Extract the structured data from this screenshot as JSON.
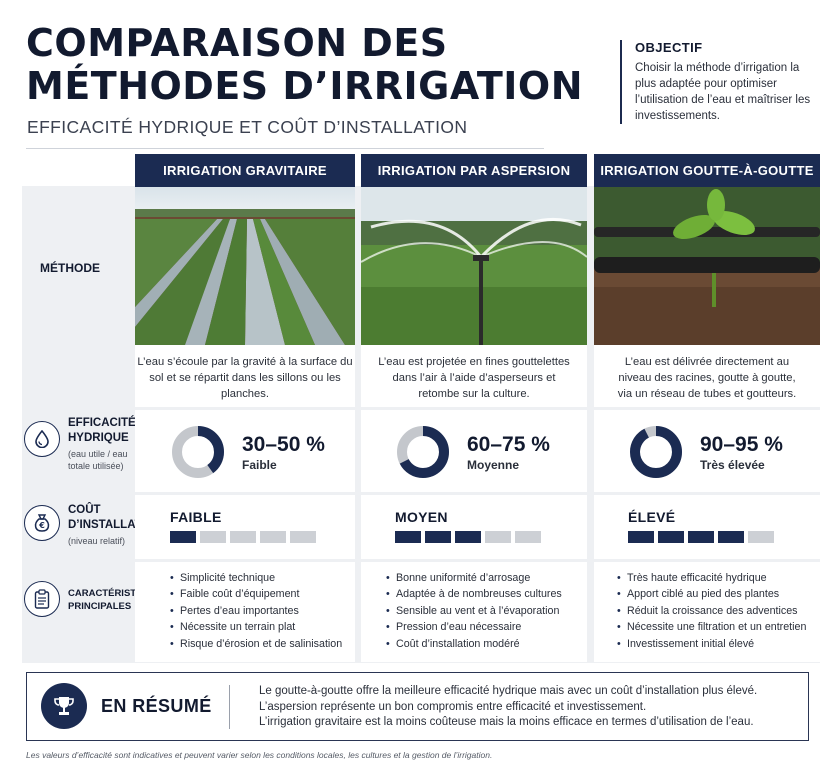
{
  "header": {
    "title_line1": "COMPARAISON DES",
    "title_line2": "MÉTHODES D’IRRIGATION",
    "subtitle": "EFFICACITÉ HYDRIQUE ET COÛT D’INSTALLATION"
  },
  "objective": {
    "title": "OBJECTIF",
    "text": "Choisir la méthode d’irrigation la plus adaptée pour optimiser l’utilisation de l’eau et maîtriser les investissements."
  },
  "row_labels": {
    "method": "MÉTHODE",
    "efficiency_title": "EFFICACITÉ HYDRIQUE",
    "efficiency_sub": "(eau utile / eau totale utilisée)",
    "cost_title": "COÛT D’INSTALLATION",
    "cost_sub": "(niveau relatif)",
    "features_title": "CARACTÉRISTIQUES PRINCIPALES"
  },
  "methods": [
    {
      "name": "IRRIGATION GRAVITAIRE",
      "description": "L’eau s’écoule par la gravité à la surface du sol et se répartit dans les sillons ou les planches.",
      "efficiency_value": "30–50 %",
      "efficiency_level": "Faible",
      "efficiency_fraction": 0.4,
      "cost_level": "FAIBLE",
      "cost_bars": 1,
      "features": [
        "Simplicité technique",
        "Faible coût d’équipement",
        "Pertes d’eau importantes",
        "Nécessite un terrain plat",
        "Risque d’érosion et de salinisation"
      ]
    },
    {
      "name": "IRRIGATION PAR ASPERSION",
      "description": "L’eau est projetée en fines gouttelettes dans l’air à l’aide d’asperseurs et retombe sur la culture.",
      "efficiency_value": "60–75 %",
      "efficiency_level": "Moyenne",
      "efficiency_fraction": 0.675,
      "cost_level": "MOYEN",
      "cost_bars": 3,
      "features": [
        "Bonne uniformité d’arrosage",
        "Adaptée à de nombreuses cultures",
        "Sensible au vent et à l’évaporation",
        "Pression d’eau nécessaire",
        "Coût d’installation modéré"
      ]
    },
    {
      "name": "IRRIGATION GOUTTE-À-GOUTTE",
      "description": "L’eau est délivrée directement au niveau des racines, goutte à goutte, via un réseau de tubes et goutteurs.",
      "efficiency_value": "90–95 %",
      "efficiency_level": "Très élevée",
      "efficiency_fraction": 0.925,
      "cost_level": "ÉLEVÉ",
      "cost_bars": 4,
      "features": [
        "Très haute efficacité hydrique",
        "Apport ciblé au pied des plantes",
        "Réduit la croissance des adventices",
        "Nécessite une filtration et un entretien",
        "Investissement initial élevé"
      ]
    }
  ],
  "summary": {
    "title": "EN RÉSUMÉ",
    "line1": "Le goutte-à-goutte offre la meilleure efficacité hydrique mais avec un coût d’installation plus élevé.",
    "line2": "L’aspersion représente un bon compromis entre efficacité et investissement.",
    "line3": "L’irrigation gravitaire est la moins coûteuse mais la moins efficace en termes d’utilisation de l’eau."
  },
  "footnote": "Les valeurs d’efficacité sont indicatives et peuvent varier selon les conditions locales, les cultures et la gestion de l’irrigation.",
  "colors": {
    "navy": "#1b2b52",
    "grey": "#c4c7cc",
    "panel": "#eef0f3"
  },
  "icons": {
    "efficiency": "water-drop-icon",
    "cost": "money-bag-icon",
    "features": "clipboard-icon",
    "summary": "trophy-icon"
  }
}
